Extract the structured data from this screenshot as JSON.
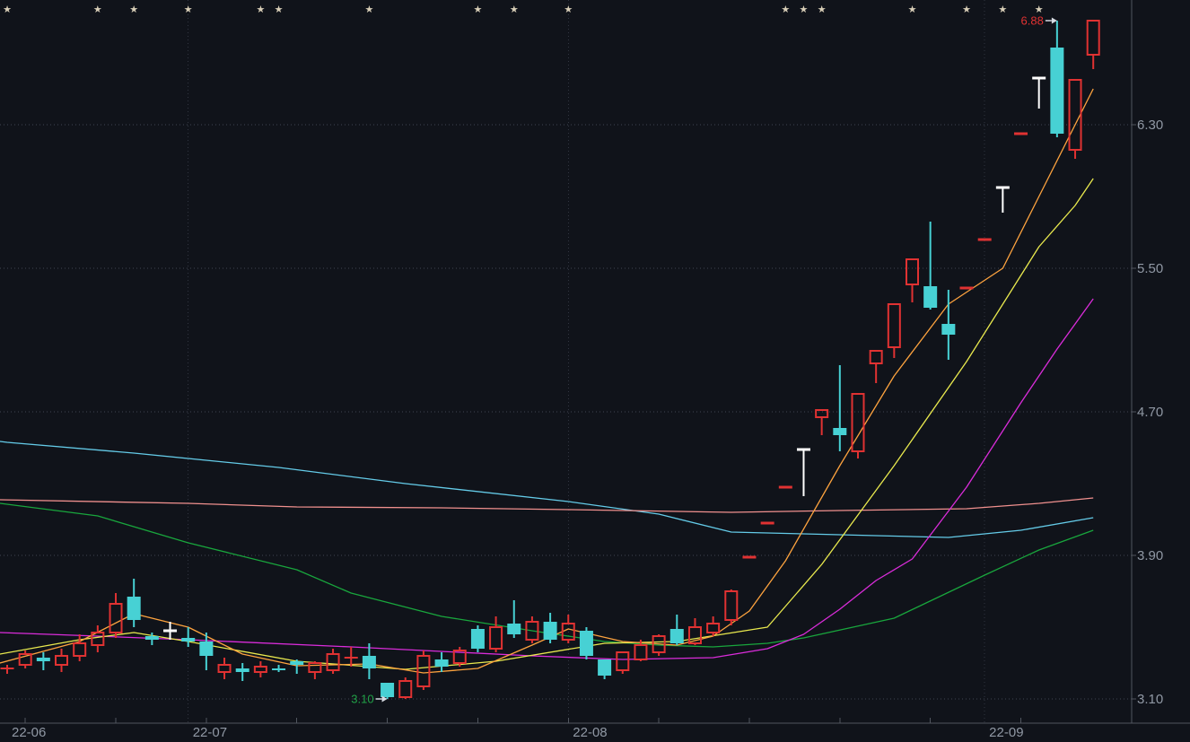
{
  "colors": {
    "background": "#10131a",
    "up": "#e03232",
    "down": "#47d1d4",
    "white_candle": "#ffffff",
    "grid": "#5a6070",
    "axis": "#51565f",
    "tick_label": "#9098a4",
    "star": "#d9cfb8",
    "annotation_arrow": "#d7dbe2",
    "high_label": "#e03232",
    "low_label": "#21a147"
  },
  "chart_data": {
    "type": "candlestick",
    "title": "",
    "xlabel": "",
    "ylabel": "",
    "grid": true,
    "ylim": [
      2.97,
      7.0
    ],
    "y_axis": {
      "tick_labels": [
        "6.30",
        "5.50",
        "4.70",
        "3.90",
        "3.10"
      ],
      "tick_prices": [
        6.3,
        5.5,
        4.7,
        3.9,
        3.1
      ]
    },
    "x_axis": {
      "months": [
        {
          "label": "22-06",
          "candle_index": 0,
          "gridline": false
        },
        {
          "label": "22-07",
          "candle_index": 10,
          "gridline": true
        },
        {
          "label": "22-08",
          "candle_index": 31,
          "gridline": true
        },
        {
          "label": "22-09",
          "candle_index": 54,
          "gridline": true
        }
      ],
      "minor_tick_step": 5
    },
    "annotations": {
      "high": {
        "text": "6.88",
        "price": 6.88,
        "candle_index": 58
      },
      "low": {
        "text": "3.10",
        "price": 3.1,
        "candle_index": 21
      }
    },
    "star_candle_indices": [
      0,
      5,
      7,
      10,
      14,
      15,
      20,
      26,
      28,
      31,
      43,
      44,
      45,
      50,
      53,
      55,
      57
    ],
    "candles": [
      [
        3.27,
        3.29,
        3.24,
        3.27,
        "u"
      ],
      [
        3.29,
        3.37,
        3.27,
        3.35,
        "u"
      ],
      [
        3.33,
        3.36,
        3.26,
        3.31,
        "d"
      ],
      [
        3.29,
        3.38,
        3.25,
        3.34,
        "u"
      ],
      [
        3.34,
        3.46,
        3.31,
        3.41,
        "u"
      ],
      [
        3.4,
        3.51,
        3.36,
        3.47,
        "u"
      ],
      [
        3.47,
        3.69,
        3.44,
        3.63,
        "u"
      ],
      [
        3.67,
        3.77,
        3.5,
        3.54,
        "d"
      ],
      [
        3.45,
        3.47,
        3.4,
        3.43,
        "d"
      ],
      [
        3.48,
        3.53,
        3.43,
        3.48,
        "w"
      ],
      [
        3.44,
        3.5,
        3.39,
        3.42,
        "d"
      ],
      [
        3.42,
        3.47,
        3.26,
        3.34,
        "d"
      ],
      [
        3.25,
        3.33,
        3.21,
        3.29,
        "u"
      ],
      [
        3.27,
        3.3,
        3.2,
        3.25,
        "d"
      ],
      [
        3.25,
        3.31,
        3.22,
        3.28,
        "u"
      ],
      [
        3.27,
        3.29,
        3.25,
        3.26,
        "d"
      ],
      [
        3.31,
        3.32,
        3.24,
        3.29,
        "d"
      ],
      [
        3.25,
        3.31,
        3.21,
        3.3,
        "u"
      ],
      [
        3.26,
        3.38,
        3.24,
        3.35,
        "u"
      ],
      [
        3.33,
        3.39,
        3.28,
        3.33,
        "u"
      ],
      [
        3.34,
        3.41,
        3.21,
        3.27,
        "d"
      ],
      [
        3.19,
        3.19,
        3.1,
        3.11,
        "d"
      ],
      [
        3.11,
        3.22,
        3.1,
        3.2,
        "u"
      ],
      [
        3.17,
        3.37,
        3.15,
        3.34,
        "u"
      ],
      [
        3.32,
        3.36,
        3.25,
        3.28,
        "d"
      ],
      [
        3.3,
        3.39,
        3.28,
        3.37,
        "u"
      ],
      [
        3.49,
        3.51,
        3.36,
        3.38,
        "d"
      ],
      [
        3.38,
        3.56,
        3.36,
        3.5,
        "u"
      ],
      [
        3.52,
        3.65,
        3.44,
        3.46,
        "d"
      ],
      [
        3.43,
        3.56,
        3.41,
        3.53,
        "u"
      ],
      [
        3.53,
        3.58,
        3.41,
        3.43,
        "d"
      ],
      [
        3.43,
        3.57,
        3.41,
        3.52,
        "u"
      ],
      [
        3.48,
        3.5,
        3.32,
        3.34,
        "d"
      ],
      [
        3.32,
        3.32,
        3.21,
        3.23,
        "d"
      ],
      [
        3.26,
        3.36,
        3.24,
        3.36,
        "u"
      ],
      [
        3.32,
        3.43,
        3.31,
        3.4,
        "u"
      ],
      [
        3.36,
        3.46,
        3.34,
        3.45,
        "u"
      ],
      [
        3.49,
        3.57,
        3.4,
        3.41,
        "d"
      ],
      [
        3.41,
        3.55,
        3.4,
        3.5,
        "u"
      ],
      [
        3.47,
        3.56,
        3.45,
        3.52,
        "u"
      ],
      [
        3.54,
        3.71,
        3.51,
        3.7,
        "u"
      ],
      [
        3.89,
        3.89,
        3.89,
        3.89,
        "f"
      ],
      [
        4.08,
        4.08,
        4.08,
        4.08,
        "f"
      ],
      [
        4.28,
        4.28,
        4.28,
        4.28,
        "f"
      ],
      [
        4.49,
        4.49,
        4.23,
        4.49,
        "w"
      ],
      [
        4.67,
        4.71,
        4.57,
        4.71,
        "u"
      ],
      [
        4.61,
        4.96,
        4.48,
        4.57,
        "d"
      ],
      [
        4.48,
        4.8,
        4.44,
        4.8,
        "u"
      ],
      [
        4.97,
        5.04,
        4.86,
        5.04,
        "u"
      ],
      [
        5.06,
        5.3,
        5.0,
        5.3,
        "u"
      ],
      [
        5.41,
        5.55,
        5.31,
        5.55,
        "u"
      ],
      [
        5.4,
        5.76,
        5.27,
        5.28,
        "d"
      ],
      [
        5.19,
        5.38,
        4.99,
        5.13,
        "d"
      ],
      [
        5.39,
        5.39,
        5.39,
        5.39,
        "f"
      ],
      [
        5.66,
        5.66,
        5.66,
        5.66,
        "f"
      ],
      [
        5.95,
        5.95,
        5.81,
        5.95,
        "w"
      ],
      [
        6.25,
        6.25,
        6.25,
        6.25,
        "f"
      ],
      [
        6.56,
        6.56,
        6.39,
        6.56,
        "w"
      ],
      [
        6.73,
        6.88,
        6.23,
        6.25,
        "d"
      ],
      [
        6.16,
        6.55,
        6.11,
        6.55,
        "u"
      ],
      [
        6.69,
        6.88,
        6.61,
        6.88,
        "u"
      ]
    ],
    "ma_lines": [
      {
        "name": "ma-line-lightcyan",
        "color": "#64cbe8",
        "points": [
          [
            -0.4,
            4.535
          ],
          [
            0,
            4.53
          ],
          [
            7,
            4.47
          ],
          [
            15,
            4.39
          ],
          [
            22,
            4.3
          ],
          [
            31,
            4.2
          ],
          [
            36,
            4.13
          ],
          [
            40,
            4.03
          ],
          [
            44,
            4.02
          ],
          [
            48,
            4.01
          ],
          [
            52,
            4.0
          ],
          [
            56,
            4.04
          ],
          [
            60,
            4.11
          ]
        ]
      },
      {
        "name": "ma-line-salmon",
        "color": "#f0908e",
        "points": [
          [
            -0.4,
            4.21
          ],
          [
            10,
            4.19
          ],
          [
            16,
            4.17
          ],
          [
            24,
            4.165
          ],
          [
            31,
            4.155
          ],
          [
            40,
            4.14
          ],
          [
            46,
            4.15
          ],
          [
            53,
            4.16
          ],
          [
            57,
            4.19
          ],
          [
            60,
            4.22
          ]
        ]
      },
      {
        "name": "ma-line-green",
        "color": "#19a63d",
        "points": [
          [
            -0.4,
            4.19
          ],
          [
            5,
            4.12
          ],
          [
            10,
            3.97
          ],
          [
            16,
            3.82
          ],
          [
            19,
            3.69
          ],
          [
            24,
            3.56
          ],
          [
            29,
            3.48
          ],
          [
            33,
            3.42
          ],
          [
            36,
            3.4
          ],
          [
            39,
            3.39
          ],
          [
            42,
            3.41
          ],
          [
            44,
            3.44
          ],
          [
            49,
            3.55
          ],
          [
            54,
            3.79
          ],
          [
            57,
            3.93
          ],
          [
            60,
            4.04
          ]
        ]
      },
      {
        "name": "ma-line-magenta",
        "color": "#da2cda",
        "points": [
          [
            -0.4,
            3.47
          ],
          [
            5,
            3.45
          ],
          [
            10,
            3.43
          ],
          [
            19,
            3.39
          ],
          [
            29,
            3.34
          ],
          [
            34,
            3.32
          ],
          [
            39,
            3.33
          ],
          [
            42,
            3.38
          ],
          [
            44,
            3.46
          ],
          [
            46,
            3.6
          ],
          [
            48,
            3.76
          ],
          [
            50,
            3.88
          ],
          [
            53,
            4.28
          ],
          [
            56,
            4.75
          ],
          [
            58,
            5.05
          ],
          [
            60,
            5.33
          ]
        ]
      },
      {
        "name": "ma-line-yellow",
        "color": "#e9e94e",
        "points": [
          [
            -0.4,
            3.35
          ],
          [
            4,
            3.43
          ],
          [
            7,
            3.47
          ],
          [
            10,
            3.42
          ],
          [
            16,
            3.31
          ],
          [
            22,
            3.265
          ],
          [
            27,
            3.31
          ],
          [
            33,
            3.41
          ],
          [
            37,
            3.42
          ],
          [
            42,
            3.5
          ],
          [
            45,
            3.85
          ],
          [
            49,
            4.4
          ],
          [
            53,
            4.98
          ],
          [
            55,
            5.3
          ],
          [
            57,
            5.62
          ],
          [
            59,
            5.85
          ],
          [
            60,
            6.0
          ]
        ]
      },
      {
        "name": "ma-line-orange",
        "color": "#fda33f",
        "points": [
          [
            -0.4,
            3.3
          ],
          [
            4,
            3.42
          ],
          [
            7,
            3.575
          ],
          [
            10,
            3.5
          ],
          [
            13,
            3.35
          ],
          [
            16,
            3.285
          ],
          [
            20,
            3.295
          ],
          [
            23,
            3.245
          ],
          [
            26,
            3.27
          ],
          [
            29,
            3.4
          ],
          [
            31,
            3.49
          ],
          [
            34,
            3.42
          ],
          [
            37,
            3.4
          ],
          [
            39,
            3.45
          ],
          [
            41,
            3.59
          ],
          [
            43,
            3.87
          ],
          [
            46,
            4.4
          ],
          [
            49,
            4.9
          ],
          [
            52,
            5.3
          ],
          [
            55,
            5.5
          ],
          [
            57,
            5.9
          ],
          [
            60,
            6.5
          ]
        ]
      }
    ]
  }
}
